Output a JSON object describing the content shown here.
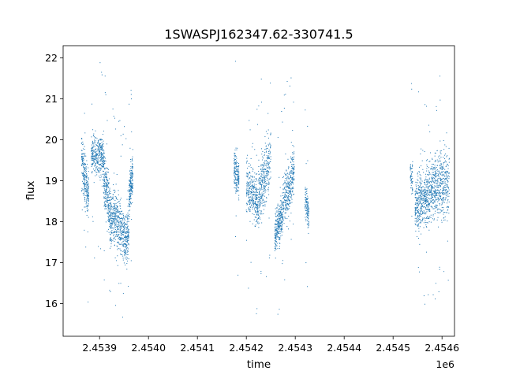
{
  "chart_data": {
    "type": "scatter",
    "title": "1SWASPJ162347.62-330741.5",
    "xlabel": "time",
    "ylabel": "flux",
    "x_offset_label": "1e6",
    "x_unit_scale": 1000000,
    "xlim": [
      2453825.5,
      2454625.5
    ],
    "ylim": [
      15.2,
      22.3
    ],
    "x_ticks": [
      2453900,
      2454000,
      2454100,
      2454200,
      2454300,
      2454400,
      2454500,
      2454600
    ],
    "x_tick_labels": [
      "2.4539",
      "2.4540",
      "2.4541",
      "2.4542",
      "2.4543",
      "2.4544",
      "2.4545",
      "2.4546"
    ],
    "y_ticks": [
      16,
      17,
      18,
      19,
      20,
      21,
      22
    ],
    "y_tick_labels": [
      "16",
      "17",
      "18",
      "19",
      "20",
      "21",
      "22"
    ],
    "grid": false,
    "marker_color": "#1f77b4",
    "segments": [
      {
        "x_start": 2453863,
        "x_end": 2453878,
        "y_start": 19.5,
        "y_end": 18.6,
        "spread": 0.6,
        "density": 260
      },
      {
        "x_start": 2453883,
        "x_end": 2453908,
        "y_start": 19.6,
        "y_end": 19.6,
        "spread": 0.5,
        "density": 340
      },
      {
        "x_start": 2453908,
        "x_end": 2453925,
        "y_start": 19.2,
        "y_end": 18.0,
        "spread": 0.7,
        "density": 320
      },
      {
        "x_start": 2453925,
        "x_end": 2453945,
        "y_start": 18.3,
        "y_end": 17.8,
        "spread": 0.7,
        "density": 300
      },
      {
        "x_start": 2453945,
        "x_end": 2453960,
        "y_start": 17.7,
        "y_end": 17.6,
        "spread": 0.6,
        "density": 240
      },
      {
        "x_start": 2453960,
        "x_end": 2453968,
        "y_start": 18.6,
        "y_end": 19.2,
        "spread": 0.5,
        "density": 200
      },
      {
        "x_start": 2454175,
        "x_end": 2454185,
        "y_start": 19.3,
        "y_end": 19.0,
        "spread": 0.5,
        "density": 170
      },
      {
        "x_start": 2454200,
        "x_end": 2454225,
        "y_start": 18.9,
        "y_end": 18.4,
        "spread": 0.6,
        "density": 340
      },
      {
        "x_start": 2454225,
        "x_end": 2454250,
        "y_start": 18.6,
        "y_end": 19.6,
        "spread": 0.7,
        "density": 340
      },
      {
        "x_start": 2454258,
        "x_end": 2454275,
        "y_start": 17.7,
        "y_end": 18.2,
        "spread": 0.5,
        "density": 300
      },
      {
        "x_start": 2454275,
        "x_end": 2454298,
        "y_start": 18.5,
        "y_end": 19.2,
        "spread": 0.6,
        "density": 340
      },
      {
        "x_start": 2454320,
        "x_end": 2454328,
        "y_start": 18.5,
        "y_end": 18.2,
        "spread": 0.4,
        "density": 120
      },
      {
        "x_start": 2454535,
        "x_end": 2454540,
        "y_start": 19.2,
        "y_end": 19.0,
        "spread": 0.4,
        "density": 60
      },
      {
        "x_start": 2454545,
        "x_end": 2454568,
        "y_start": 18.4,
        "y_end": 18.6,
        "spread": 0.7,
        "density": 360
      },
      {
        "x_start": 2454568,
        "x_end": 2454590,
        "y_start": 18.6,
        "y_end": 18.9,
        "spread": 0.7,
        "density": 340
      },
      {
        "x_start": 2454590,
        "x_end": 2454615,
        "y_start": 18.9,
        "y_end": 18.9,
        "spread": 0.8,
        "density": 320
      }
    ]
  }
}
